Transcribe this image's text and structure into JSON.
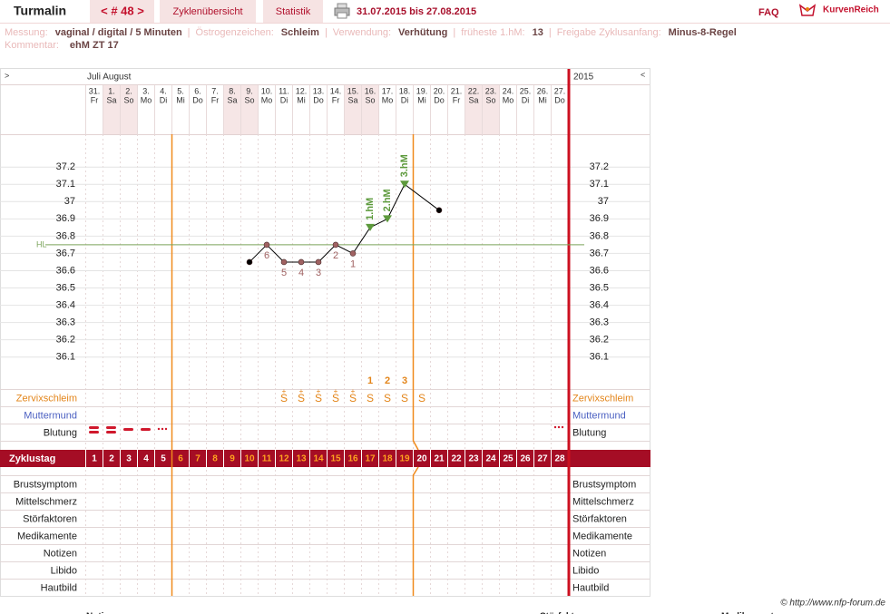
{
  "header": {
    "title": "Turmalin",
    "cycle_nav": "< # 48 >",
    "tabs": [
      "Zyklenübersicht",
      "Statistik"
    ],
    "date_range": "31.07.2015 bis 27.08.2015",
    "faq": "FAQ",
    "logo": "KurvenReich"
  },
  "info": {
    "separator": "|",
    "fields": [
      {
        "label": "Messung:",
        "value": "vaginal / digital / 5 Minuten"
      },
      {
        "label": "Östrogenzeichen:",
        "value": "Schleim"
      },
      {
        "label": "Verwendung:",
        "value": "Verhütung"
      },
      {
        "label": "früheste 1.hM:",
        "value": "13"
      },
      {
        "label": "Freigabe Zyklusanfang:",
        "value": "Minus-8-Regel"
      }
    ],
    "comment": {
      "label": "Kommentar:",
      "value": "ehM ZT 17"
    }
  },
  "table": {
    "nav_left": ">",
    "months": "Juli August",
    "year": "2015",
    "nav_right": "<",
    "dates": [
      "31.",
      "1.",
      "2.",
      "3.",
      "4.",
      "5.",
      "6.",
      "7.",
      "8.",
      "9.",
      "10.",
      "11.",
      "12.",
      "13.",
      "14.",
      "15.",
      "16.",
      "17.",
      "18.",
      "19.",
      "20.",
      "21.",
      "22.",
      "23.",
      "24.",
      "25.",
      "26.",
      "27."
    ],
    "weekdays": [
      "Fr",
      "Sa",
      "So",
      "Mo",
      "Di",
      "Mi",
      "Do",
      "Fr",
      "Sa",
      "So",
      "Mo",
      "Di",
      "Mi",
      "Do",
      "Fr",
      "Sa",
      "So",
      "Mo",
      "Di",
      "Mi",
      "Do",
      "Fr",
      "Sa",
      "So",
      "Mo",
      "Di",
      "Mi",
      "Do"
    ],
    "peak_count": [
      null,
      null,
      null,
      null,
      null,
      null,
      null,
      null,
      null,
      null,
      null,
      null,
      null,
      null,
      null,
      null,
      "1",
      "2",
      "3",
      null,
      null,
      null,
      null,
      null,
      null,
      null,
      null,
      null
    ],
    "cervix": [
      null,
      null,
      null,
      null,
      null,
      null,
      null,
      null,
      null,
      null,
      null,
      "S",
      "S",
      "S",
      "S",
      "S",
      "S",
      "S",
      "S",
      "S",
      null,
      null,
      null,
      null,
      null,
      null,
      null,
      null
    ],
    "cervix_plus": [
      null,
      null,
      null,
      null,
      null,
      null,
      null,
      null,
      null,
      null,
      null,
      "+",
      "+",
      "+",
      "+",
      "+",
      null,
      null,
      null,
      null,
      null,
      null,
      null,
      null,
      null,
      null,
      null,
      null
    ],
    "upper_rows": [
      {
        "label": "Zervixschleim",
        "color": "#e3851a"
      },
      {
        "label": "Muttermund",
        "color": "#4a5fc1"
      },
      {
        "label": "Blutung",
        "color": "#222222"
      }
    ],
    "cycle_label": "Zyklustag",
    "cycle_days": [
      1,
      2,
      3,
      4,
      5,
      6,
      7,
      8,
      9,
      10,
      11,
      12,
      13,
      14,
      15,
      16,
      17,
      18,
      19,
      20,
      21,
      22,
      23,
      24,
      25,
      26,
      27,
      28
    ],
    "lower_rows": [
      "Brustsymptom",
      "Mittelschmerz",
      "Störfaktoren",
      "Medikamente",
      "Notizen",
      "Libido",
      "Hautbild"
    ]
  },
  "chart_data": {
    "type": "line",
    "x": [
      10,
      11,
      12,
      13,
      14,
      15,
      16,
      17,
      18,
      19,
      21
    ],
    "values": [
      36.65,
      36.75,
      36.65,
      36.65,
      36.65,
      36.75,
      36.7,
      36.85,
      36.9,
      37.1,
      36.95
    ],
    "point_labels": [
      null,
      "6",
      "5",
      "4",
      "3",
      "2",
      "1",
      "1.hM",
      "2.hM",
      "3.hM",
      null
    ],
    "marker_shapes": [
      "circle",
      "circle",
      "circle",
      "circle",
      "circle",
      "circle",
      "circle",
      "triangle",
      "triangle",
      "triangle",
      "circle"
    ],
    "marker_colors": [
      "#000000",
      "#a06262",
      "#a06262",
      "#a06262",
      "#a06262",
      "#a06262",
      "#a06262",
      "#5d9a3c",
      "#5d9a3c",
      "#5d9a3c",
      "#000000"
    ],
    "color": "#000000",
    "xlim": [
      0.5,
      28.5
    ],
    "ylim": [
      35.92,
      37.39
    ],
    "yticks": [
      36.1,
      36.2,
      36.3,
      36.4,
      36.5,
      36.6,
      36.7,
      36.8,
      36.9,
      37,
      37.1,
      37.2
    ],
    "grid": true,
    "hl": {
      "label": "HL",
      "value": 36.75,
      "color": "#7aa35a"
    }
  },
  "footer": {
    "copyright": "© http://www.nfp-forum.de",
    "cut_labels": [
      "Notizen",
      "Störfaktoren",
      "Medikamente"
    ]
  }
}
